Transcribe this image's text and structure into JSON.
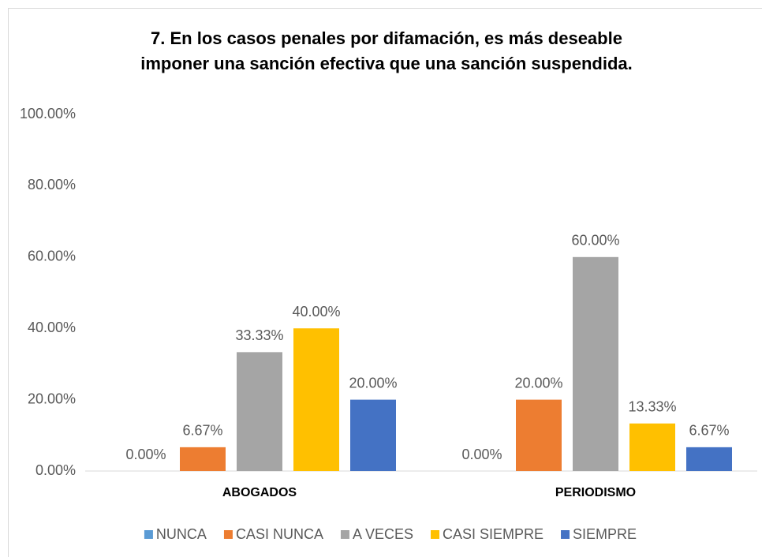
{
  "chart_data": {
    "type": "bar",
    "title": [
      "7.  En los casos penales por difamación, es más deseable",
      "imponer una sanción efectiva que una sanción suspendida."
    ],
    "categories": [
      "ABOGADOS",
      "PERIODISMO"
    ],
    "series": [
      {
        "name": "NUNCA",
        "color": "#5B9BD5",
        "values": [
          0,
          0
        ],
        "value_labels": [
          "0.00%",
          "0.00%"
        ]
      },
      {
        "name": "CASI NUNCA",
        "color": "#ED7D31",
        "values": [
          6.67,
          20
        ],
        "value_labels": [
          "6.67%",
          "20.00%"
        ]
      },
      {
        "name": "A VECES",
        "color": "#A5A5A5",
        "values": [
          33.33,
          60
        ],
        "value_labels": [
          "33.33%",
          "60.00%"
        ]
      },
      {
        "name": "CASI SIEMPRE",
        "color": "#FFC000",
        "values": [
          40,
          13.33
        ],
        "value_labels": [
          "40.00%",
          "13.33%"
        ]
      },
      {
        "name": "SIEMPRE",
        "color": "#4472C4",
        "values": [
          20,
          6.67
        ],
        "value_labels": [
          "20.00%",
          "6.67%"
        ]
      }
    ],
    "ylim": [
      0,
      100
    ],
    "yticks": [
      {
        "value": 0,
        "label": "0.00%"
      },
      {
        "value": 20,
        "label": "20.00%"
      },
      {
        "value": 40,
        "label": "40.00%"
      },
      {
        "value": 60,
        "label": "60.00%"
      },
      {
        "value": 80,
        "label": "80.00%"
      },
      {
        "value": 100,
        "label": "100.00%"
      }
    ],
    "grid": false,
    "legend": "bottom"
  }
}
